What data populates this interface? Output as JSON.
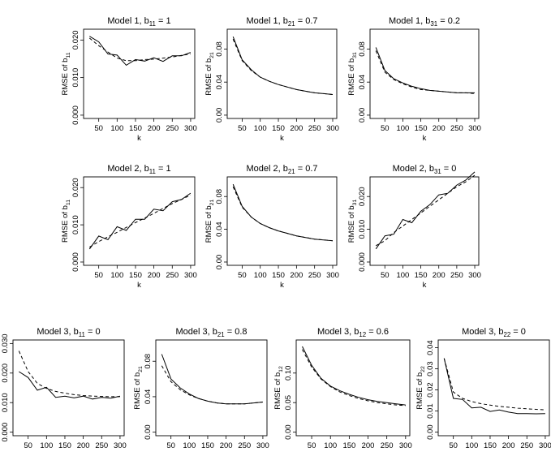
{
  "chart_data": [
    {
      "type": "line",
      "title": "Model 1, b",
      "title_sub": "11",
      "title_suffix": " = 1",
      "ylabel": "RMSE of b",
      "ylabel_sub": "11",
      "xlabel": "k",
      "xlim": [
        20,
        300
      ],
      "ylim": [
        0,
        0.022
      ],
      "xticks": [
        50,
        100,
        150,
        200,
        250,
        300
      ],
      "yticks": [
        0,
        0.01,
        0.02
      ],
      "ytick_labels": [
        "0.000",
        "0.010",
        "0.020"
      ],
      "x": [
        25,
        50,
        75,
        100,
        125,
        150,
        175,
        200,
        225,
        250,
        275,
        300
      ],
      "series": [
        {
          "style": "solid",
          "values": [
            0.021,
            0.0195,
            0.0163,
            0.016,
            0.0133,
            0.0148,
            0.0144,
            0.0153,
            0.0143,
            0.0158,
            0.0158,
            0.0167
          ]
        },
        {
          "style": "dashed",
          "values": [
            0.0205,
            0.0185,
            0.0168,
            0.0152,
            0.0145,
            0.0145,
            0.0148,
            0.0149,
            0.0152,
            0.0155,
            0.0159,
            0.0163
          ]
        }
      ]
    },
    {
      "type": "line",
      "title": "Model 1, b",
      "title_sub": "21",
      "title_suffix": " = 0.7",
      "ylabel": "RMSE of b",
      "ylabel_sub": "21",
      "xlabel": "k",
      "xlim": [
        20,
        300
      ],
      "ylim": [
        0,
        0.1
      ],
      "xticks": [
        50,
        100,
        150,
        200,
        250,
        300
      ],
      "yticks": [
        0,
        0.04,
        0.08
      ],
      "ytick_labels": [
        "0.00",
        "0.04",
        "0.08"
      ],
      "x": [
        25,
        50,
        75,
        100,
        125,
        150,
        175,
        200,
        225,
        250,
        275,
        300
      ],
      "series": [
        {
          "style": "solid",
          "values": [
            0.095,
            0.067,
            0.055,
            0.046,
            0.041,
            0.037,
            0.034,
            0.031,
            0.029,
            0.027,
            0.026,
            0.025
          ]
        },
        {
          "style": "dashed",
          "values": [
            0.092,
            0.066,
            0.054,
            0.046,
            0.041,
            0.037,
            0.034,
            0.031,
            0.029,
            0.027,
            0.026,
            0.025
          ]
        }
      ]
    },
    {
      "type": "line",
      "title": "Model 1, b",
      "title_sub": "31",
      "title_suffix": " = 0.2",
      "ylabel": "RMSE of b",
      "ylabel_sub": "31",
      "xlabel": "k",
      "xlim": [
        20,
        300
      ],
      "ylim": [
        0,
        0.1
      ],
      "xticks": [
        50,
        100,
        150,
        200,
        250,
        300
      ],
      "yticks": [
        0,
        0.04,
        0.08
      ],
      "ytick_labels": [
        "0.00",
        "0.04",
        "0.08"
      ],
      "x": [
        25,
        50,
        75,
        100,
        125,
        150,
        175,
        200,
        225,
        250,
        275,
        300
      ],
      "series": [
        {
          "style": "solid",
          "values": [
            0.082,
            0.054,
            0.044,
            0.039,
            0.035,
            0.032,
            0.03,
            0.029,
            0.028,
            0.027,
            0.027,
            0.027
          ]
        },
        {
          "style": "dashed",
          "values": [
            0.078,
            0.052,
            0.043,
            0.038,
            0.034,
            0.031,
            0.03,
            0.029,
            0.028,
            0.027,
            0.027,
            0.026
          ]
        }
      ]
    },
    {
      "type": "line",
      "title": "Model 2, b",
      "title_sub": "11",
      "title_suffix": " = 1",
      "ylabel": "RMSE of b",
      "ylabel_sub": "11",
      "xlabel": "k",
      "xlim": [
        20,
        300
      ],
      "ylim": [
        0,
        0.022
      ],
      "xticks": [
        50,
        100,
        150,
        200,
        250,
        300
      ],
      "yticks": [
        0,
        0.01,
        0.02
      ],
      "ytick_labels": [
        "0.000",
        "0.010",
        "0.020"
      ],
      "x": [
        25,
        50,
        75,
        100,
        125,
        150,
        175,
        200,
        225,
        250,
        275,
        300
      ],
      "series": [
        {
          "style": "solid",
          "values": [
            0.0035,
            0.007,
            0.006,
            0.0095,
            0.0085,
            0.0115,
            0.0115,
            0.0142,
            0.0138,
            0.0162,
            0.0168,
            0.0185
          ]
        },
        {
          "style": "dashed",
          "values": [
            0.004,
            0.0055,
            0.0068,
            0.008,
            0.0093,
            0.0106,
            0.0118,
            0.0131,
            0.0144,
            0.0157,
            0.0168,
            0.018
          ]
        }
      ]
    },
    {
      "type": "line",
      "title": "Model 2, b",
      "title_sub": "21",
      "title_suffix": " = 0.7",
      "ylabel": "RMSE of b",
      "ylabel_sub": "21",
      "xlabel": "k",
      "xlim": [
        20,
        300
      ],
      "ylim": [
        0,
        0.1
      ],
      "xticks": [
        50,
        100,
        150,
        200,
        250,
        300
      ],
      "yticks": [
        0,
        0.04,
        0.08
      ],
      "ytick_labels": [
        "0.00",
        "0.04",
        "0.08"
      ],
      "x": [
        25,
        50,
        75,
        100,
        125,
        150,
        175,
        200,
        225,
        250,
        275,
        300
      ],
      "series": [
        {
          "style": "solid",
          "values": [
            0.095,
            0.068,
            0.055,
            0.047,
            0.042,
            0.038,
            0.035,
            0.032,
            0.03,
            0.028,
            0.027,
            0.026
          ]
        },
        {
          "style": "dashed",
          "values": [
            0.092,
            0.067,
            0.055,
            0.047,
            0.042,
            0.038,
            0.035,
            0.032,
            0.03,
            0.028,
            0.027,
            0.026
          ]
        }
      ]
    },
    {
      "type": "line",
      "title": "Model 2, b",
      "title_sub": "31",
      "title_suffix": " = 0",
      "ylabel": "RMSE of b",
      "ylabel_sub": "31",
      "xlabel": "k",
      "xlim": [
        20,
        300
      ],
      "ylim": [
        0,
        0.025
      ],
      "xticks": [
        50,
        100,
        150,
        200,
        250,
        300
      ],
      "yticks": [
        0,
        0.01,
        0.02
      ],
      "ytick_labels": [
        "0.000",
        "0.010",
        "0.020"
      ],
      "x": [
        25,
        50,
        75,
        100,
        125,
        150,
        175,
        200,
        225,
        250,
        275,
        300
      ],
      "series": [
        {
          "style": "solid",
          "values": [
            0.004,
            0.008,
            0.0085,
            0.013,
            0.012,
            0.0155,
            0.0175,
            0.0205,
            0.021,
            0.0235,
            0.025,
            0.0275
          ]
        },
        {
          "style": "dashed",
          "values": [
            0.005,
            0.0065,
            0.009,
            0.011,
            0.013,
            0.015,
            0.017,
            0.019,
            0.021,
            0.023,
            0.0245,
            0.0265
          ]
        }
      ]
    },
    {
      "type": "line",
      "title": "Model 3, b",
      "title_sub": "11",
      "title_suffix": " = 0",
      "ylabel": "",
      "ylabel_sub": "",
      "xlabel": "",
      "xlim": [
        20,
        300
      ],
      "ylim": [
        0,
        0.03
      ],
      "xticks": [
        50,
        100,
        150,
        200,
        250,
        300
      ],
      "yticks": [
        0,
        0.01,
        0.02,
        0.03
      ],
      "ytick_labels": [
        "0.000",
        "0.010",
        "0.020",
        "0.030"
      ],
      "x": [
        25,
        50,
        75,
        100,
        125,
        150,
        175,
        200,
        225,
        250,
        275,
        300
      ],
      "series": [
        {
          "style": "solid",
          "values": [
            0.0205,
            0.0185,
            0.0142,
            0.0152,
            0.0118,
            0.0122,
            0.0116,
            0.0122,
            0.0112,
            0.0118,
            0.0115,
            0.0122
          ]
        },
        {
          "style": "dashed",
          "values": [
            0.0275,
            0.0205,
            0.0165,
            0.0148,
            0.0138,
            0.0132,
            0.0127,
            0.0124,
            0.0122,
            0.0121,
            0.012,
            0.012
          ]
        }
      ]
    },
    {
      "type": "line",
      "title": "Model 3, b",
      "title_sub": "21",
      "title_suffix": " = 0.8",
      "ylabel": "RMSE of b",
      "ylabel_sub": "21",
      "xlabel": "",
      "xlim": [
        20,
        300
      ],
      "ylim": [
        0,
        0.1
      ],
      "xticks": [
        50,
        100,
        150,
        200,
        250,
        300
      ],
      "yticks": [
        0,
        0.04,
        0.08
      ],
      "ytick_labels": [
        "0.00",
        "0.04",
        "0.08"
      ],
      "x": [
        25,
        50,
        75,
        100,
        125,
        150,
        175,
        200,
        225,
        250,
        275,
        300
      ],
      "series": [
        {
          "style": "solid",
          "values": [
            0.088,
            0.06,
            0.05,
            0.043,
            0.038,
            0.035,
            0.033,
            0.032,
            0.032,
            0.032,
            0.033,
            0.034
          ]
        },
        {
          "style": "dashed",
          "values": [
            0.075,
            0.057,
            0.048,
            0.042,
            0.038,
            0.035,
            0.033,
            0.032,
            0.032,
            0.032,
            0.033,
            0.034
          ]
        }
      ]
    },
    {
      "type": "line",
      "title": "Model 3, b",
      "title_sub": "12",
      "title_suffix": " = 0.6",
      "ylabel": "RMSE of b",
      "ylabel_sub": "12",
      "xlabel": "",
      "xlim": [
        20,
        300
      ],
      "ylim": [
        0,
        0.15
      ],
      "xticks": [
        50,
        100,
        150,
        200,
        250,
        300
      ],
      "yticks": [
        0,
        0.05,
        0.1
      ],
      "ytick_labels": [
        "0.00",
        "0.05",
        "0.10"
      ],
      "x": [
        25,
        50,
        75,
        100,
        125,
        150,
        175,
        200,
        225,
        250,
        275,
        300
      ],
      "series": [
        {
          "style": "solid",
          "values": [
            0.145,
            0.113,
            0.091,
            0.078,
            0.07,
            0.064,
            0.059,
            0.055,
            0.052,
            0.05,
            0.048,
            0.046
          ]
        },
        {
          "style": "dashed",
          "values": [
            0.14,
            0.11,
            0.09,
            0.077,
            0.068,
            0.062,
            0.057,
            0.053,
            0.05,
            0.048,
            0.046,
            0.045
          ]
        }
      ]
    },
    {
      "type": "line",
      "title": "Model 3, b",
      "title_sub": "22",
      "title_suffix": " = 0",
      "ylabel": "RMSE of b",
      "ylabel_sub": "22",
      "xlabel": "",
      "xlim": [
        20,
        300
      ],
      "ylim": [
        0,
        0.042
      ],
      "xticks": [
        50,
        100,
        150,
        200,
        250,
        300
      ],
      "yticks": [
        0,
        0.01,
        0.02,
        0.03,
        0.04
      ],
      "ytick_labels": [
        "0.00",
        "0.01",
        "0.02",
        "0.03",
        "0.04"
      ],
      "x": [
        25,
        50,
        75,
        100,
        125,
        150,
        175,
        200,
        225,
        250,
        275,
        300
      ],
      "series": [
        {
          "style": "solid",
          "values": [
            0.035,
            0.016,
            0.0155,
            0.0115,
            0.0118,
            0.0098,
            0.0105,
            0.0095,
            0.0088,
            0.0088,
            0.0087,
            0.0088
          ]
        },
        {
          "style": "dashed",
          "values": [
            0.035,
            0.019,
            0.016,
            0.0145,
            0.0135,
            0.0128,
            0.0122,
            0.0118,
            0.0114,
            0.0111,
            0.0108,
            0.0106
          ]
        }
      ]
    }
  ]
}
